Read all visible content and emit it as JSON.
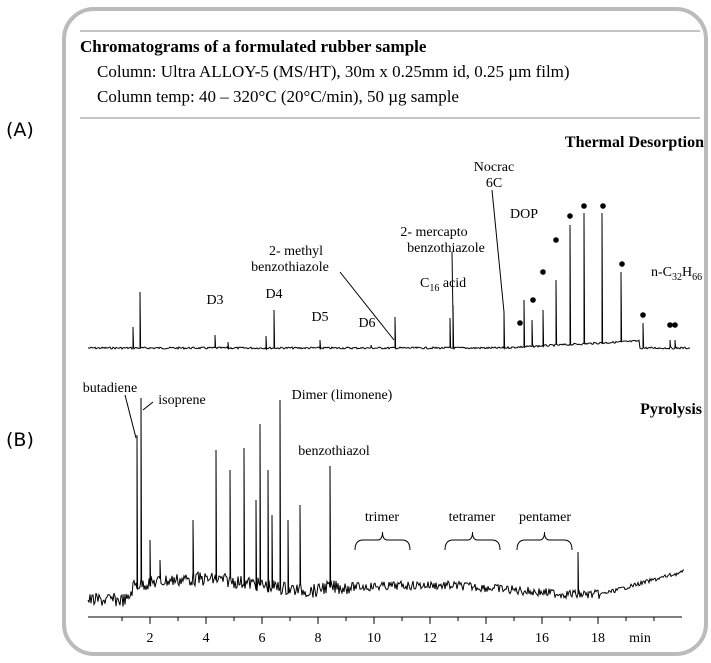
{
  "header": {
    "title": "Chromatograms of a formulated rubber sample",
    "line1": "Column: Ultra ALLOY-5 (MS/HT), 30m x 0.25mm id, 0.25 µm film)",
    "line2": "Column temp: 40 – 320°C (20°C/min), 50 µg sample"
  },
  "panels": [
    {
      "label": "(A)",
      "name": "Thermal Desorption",
      "peaks": [
        [
          "D3"
        ],
        [
          "D4"
        ],
        [
          "D5"
        ],
        [
          "D6"
        ],
        [
          "2- methyl",
          "benzothiazole"
        ],
        [
          "2- mercapto",
          "benzothiazole"
        ],
        [
          "C",
          "16",
          " acid"
        ],
        [
          "Nocrac",
          "6C"
        ],
        [
          "DOP"
        ],
        [
          "n-C",
          "32",
          "H",
          "66"
        ]
      ]
    },
    {
      "label": "(B)",
      "name": "Pyrolysis",
      "peaks": [
        [
          "butadiene"
        ],
        [
          "isoprene"
        ],
        [
          "Dimer (limonene)"
        ],
        [
          "benzothiazol"
        ],
        [
          "trimer"
        ],
        [
          "tetramer"
        ],
        [
          "pentamer"
        ]
      ]
    }
  ],
  "axis": {
    "ticks": [
      2,
      4,
      6,
      8,
      10,
      12,
      14,
      16,
      18
    ],
    "unit": "min"
  }
}
